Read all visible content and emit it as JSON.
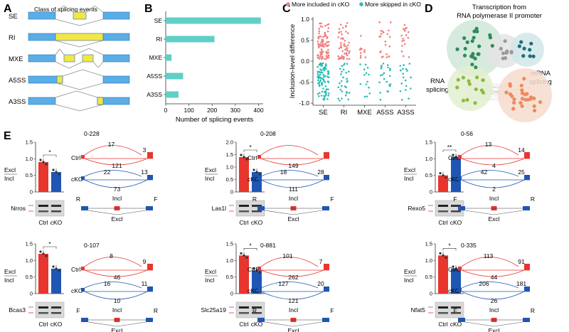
{
  "panel_labels": {
    "a": "A",
    "b": "B",
    "c": "C",
    "d": "D",
    "e": "E"
  },
  "panel_a": {
    "title": "Class of splicing events",
    "events": [
      "SE",
      "RI",
      "MXE",
      "A5SS",
      "A3SS"
    ]
  },
  "panel_d": {
    "title_line1": "Transcription from",
    "title_line2": "RNA polymerase II promoter",
    "label_mrna1": "mRNA",
    "label_mrna2": "splicing",
    "label_rna1": "RNA",
    "label_rna2": "splicing"
  },
  "chart_data": [
    {
      "id": "B",
      "type": "bar",
      "orientation": "horizontal",
      "categories": [
        "SE",
        "RI",
        "MXE",
        "A5SS",
        "A3SS"
      ],
      "values": [
        410,
        210,
        25,
        75,
        55
      ],
      "xlabel": "Number of splicing events",
      "xlim": [
        0,
        420
      ],
      "xticks": [
        0,
        100,
        200,
        300,
        400
      ],
      "color": "#5fcfc7"
    },
    {
      "id": "C",
      "type": "scatter",
      "title": "",
      "categories": [
        "SE",
        "RI",
        "MXE",
        "A5SS",
        "A3SS"
      ],
      "ylabel": "Inclusion-level difference",
      "ylim": [
        -1.05,
        1.05
      ],
      "yticks": [
        "1.0",
        "0.5",
        "0.0",
        "-0.5",
        "-1.0"
      ],
      "legend": [
        "More included in cKO",
        "More skipped in cKO"
      ],
      "colors": [
        "#f08080",
        "#2bbcb4"
      ],
      "included_counts": [
        90,
        55,
        10,
        22,
        18
      ],
      "skipped_counts": [
        90,
        30,
        14,
        22,
        18
      ],
      "included_range": [
        0.05,
        0.95
      ],
      "skipped_range": [
        -0.95,
        -0.05
      ]
    },
    {
      "id": "E-Nrros",
      "type": "bar",
      "gene": "Nrros",
      "categories": [
        "Ctrl",
        "cKO"
      ],
      "values": [
        0.9,
        0.6
      ],
      "ylim": [
        0,
        1.5
      ],
      "yticks": [
        "0",
        "0.5",
        "1.0",
        "1.5"
      ],
      "signif": "*",
      "ylabel_top": "Excl",
      "ylabel_bottom": "Incl",
      "range_label": "0-228",
      "ctrl_junctions": [
        "17",
        "3"
      ],
      "ctrl_excl": "121",
      "cko_junctions": [
        "22",
        "13"
      ],
      "cko_excl": "73",
      "primer_left": "R",
      "primer_right": "F",
      "model_top": "Incl",
      "model_bottom": "Excl"
    },
    {
      "id": "E-Las1l",
      "type": "bar",
      "gene": "Las1l",
      "categories": [
        "Ctrl",
        "cKO"
      ],
      "values": [
        1.4,
        0.8
      ],
      "ylim": [
        0,
        2.0
      ],
      "yticks": [
        "0",
        "0.5",
        "1.0",
        "1.5",
        "2.0"
      ],
      "signif": "*",
      "ylabel_top": "Excl",
      "ylabel_bottom": "Incl",
      "range_label": "0-208",
      "ctrl_junctions": [],
      "ctrl_excl": "149",
      "cko_junctions": [
        "18",
        "28"
      ],
      "cko_excl": "111",
      "primer_left": "R",
      "primer_right": "F",
      "model_top": "Incl",
      "model_bottom": "Excl"
    },
    {
      "id": "E-Rexo5",
      "type": "bar",
      "gene": "Rexo5",
      "categories": [
        "Ctrl",
        "cKO"
      ],
      "values": [
        0.5,
        1.05
      ],
      "ylim": [
        0,
        1.5
      ],
      "yticks": [
        "0",
        "0.5",
        "1.0",
        "1.5"
      ],
      "signif": "**",
      "ylabel_top": "Excl",
      "ylabel_bottom": "Incl",
      "range_label": "0-56",
      "ctrl_junctions": [
        "13",
        "14"
      ],
      "ctrl_excl": "4",
      "cko_junctions": [
        "42",
        "25"
      ],
      "cko_excl": "2",
      "primer_left": "F",
      "primer_right": "R",
      "model_top": "Incl",
      "model_bottom": "Excl"
    },
    {
      "id": "E-Bcas3",
      "type": "bar",
      "gene": "Bcas3",
      "categories": [
        "Ctrl",
        "cKO"
      ],
      "values": [
        1.2,
        0.75
      ],
      "ylim": [
        0,
        1.5
      ],
      "yticks": [
        "0",
        "0.5",
        "1.0",
        "1.5"
      ],
      "signif": "*",
      "ylabel_top": "Excl",
      "ylabel_bottom": "Incl",
      "range_label": "0-107",
      "ctrl_junctions": [
        "8",
        "9"
      ],
      "ctrl_excl": "46",
      "cko_junctions": [
        "16",
        "11"
      ],
      "cko_excl": "10",
      "primer_left": "F",
      "primer_right": "R",
      "model_top": "Incl",
      "model_bottom": "Excl"
    },
    {
      "id": "E-Slc25a19",
      "type": "bar",
      "gene": "Slc25a19",
      "categories": [
        "Ctrl",
        "cKO"
      ],
      "values": [
        1.15,
        0.7
      ],
      "ylim": [
        0,
        1.5
      ],
      "yticks": [
        "0",
        "0.5",
        "1.0",
        "1.5"
      ],
      "signif": "*",
      "ylabel_top": "Excl",
      "ylabel_bottom": "Incl",
      "range_label": "0-881",
      "ctrl_junctions": [
        "101",
        "7"
      ],
      "ctrl_excl": "262",
      "cko_junctions": [
        "127",
        "20"
      ],
      "cko_excl": "121",
      "primer_left": "R",
      "primer_right": "F",
      "model_top": "Incl",
      "model_bottom": "Excl"
    },
    {
      "id": "E-Nfat5",
      "type": "bar",
      "gene": "Nfat5",
      "categories": [
        "Ctrl",
        "cKO"
      ],
      "values": [
        1.15,
        0.75
      ],
      "ylim": [
        0,
        1.5
      ],
      "yticks": [
        "0",
        "0.5",
        "1.0",
        "1.5"
      ],
      "signif": "*",
      "ylabel_top": "Excl",
      "ylabel_bottom": "Incl",
      "range_label": "0-335",
      "ctrl_junctions": [
        "113",
        "91"
      ],
      "ctrl_excl": "44",
      "cko_junctions": [
        "206",
        "181"
      ],
      "cko_excl": "26",
      "primer_left": "F",
      "primer_right": "R",
      "model_top": "Incl",
      "model_bottom": "Excl"
    }
  ]
}
